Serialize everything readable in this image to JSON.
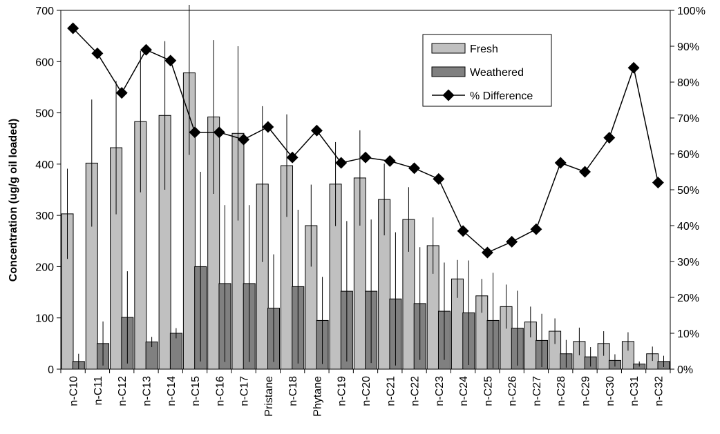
{
  "chart_data": {
    "type": "bar",
    "categories": [
      "n-C10",
      "n-C11",
      "n-C12",
      "n-C13",
      "n-C14",
      "n-C15",
      "n-C16",
      "n-C17",
      "Pristane",
      "n-C18",
      "Phytane",
      "n-C19",
      "n-C20",
      "n-C21",
      "n-C22",
      "n-C23",
      "n-C24",
      "n-C25",
      "n-C26",
      "n-C27",
      "n-C28",
      "n-C29",
      "n-C30",
      "n-C31",
      "n-C32"
    ],
    "ylabel": "Concentration (ug/g oil loaded)",
    "ylim": [
      0,
      700
    ],
    "yticks": [
      0,
      100,
      200,
      300,
      400,
      500,
      600,
      700
    ],
    "y2lim": [
      0,
      100
    ],
    "y2ticks": [
      "0%",
      "10%",
      "20%",
      "30%",
      "40%",
      "50%",
      "60%",
      "70%",
      "80%",
      "90%",
      "100%"
    ],
    "legend_position": "top-right",
    "series": [
      {
        "name": "Fresh",
        "kind": "bar",
        "color": "#c0c0c0",
        "values": [
          303,
          402,
          432,
          483,
          495,
          578,
          492,
          460,
          361,
          397,
          280,
          361,
          373,
          331,
          292,
          241,
          176,
          143,
          122,
          92,
          74,
          54,
          50,
          54,
          30
        ],
        "errors": [
          88,
          124,
          130,
          138,
          145,
          160,
          150,
          170,
          152,
          100,
          80,
          82,
          93,
          70,
          63,
          55,
          37,
          33,
          43,
          30,
          25,
          27,
          24,
          18,
          14
        ]
      },
      {
        "name": "Weathered",
        "kind": "bar",
        "color": "#808080",
        "values": [
          15,
          50,
          101,
          53,
          70,
          200,
          167,
          167,
          119,
          161,
          95,
          152,
          152,
          137,
          128,
          113,
          110,
          95,
          80,
          56,
          30,
          24,
          17,
          10,
          15
        ],
        "errors": [
          15,
          43,
          90,
          10,
          10,
          185,
          153,
          153,
          105,
          150,
          85,
          137,
          140,
          130,
          110,
          95,
          102,
          93,
          73,
          52,
          27,
          19,
          12,
          5,
          11
        ]
      },
      {
        "name": "% Difference",
        "kind": "line",
        "axis": "right",
        "color": "#000000",
        "values": [
          95,
          88,
          77,
          89,
          86,
          66,
          66,
          64,
          67.5,
          59,
          66.5,
          57.5,
          59,
          58,
          56,
          53,
          38.5,
          32.5,
          35.5,
          39,
          57.5,
          55,
          64.5,
          84,
          52
        ]
      }
    ]
  }
}
